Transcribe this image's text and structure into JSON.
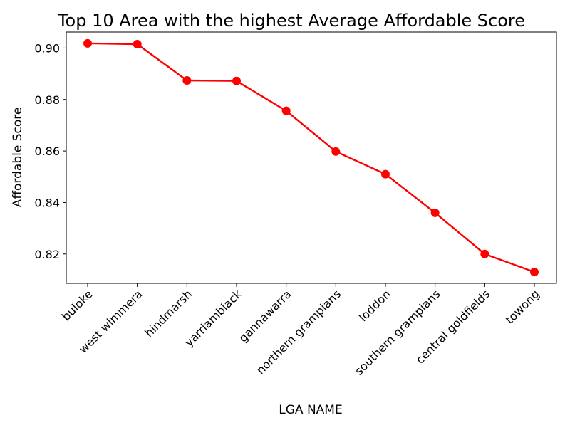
{
  "chart_data": {
    "type": "line",
    "title": "Top 10 Area with the highest Average Affordable Score",
    "xlabel": "LGA NAME",
    "ylabel": "Affordable Score",
    "categories": [
      "buloke",
      "west wimmera",
      "hindmarsh",
      "yarriambiack",
      "gannawarra",
      "northern grampians",
      "loddon",
      "southern grampians",
      "central goldfields",
      "towong"
    ],
    "values": [
      0.9018,
      0.9015,
      0.8874,
      0.8872,
      0.8756,
      0.8598,
      0.851,
      0.836,
      0.82,
      0.813
    ],
    "ylim": [
      0.8086,
      0.9062
    ],
    "yticks": [
      "0.82",
      "0.84",
      "0.86",
      "0.88",
      "0.90"
    ],
    "line_color": "#ff0000",
    "marker_color": "#ff0000",
    "grid": false,
    "legend": false
  }
}
